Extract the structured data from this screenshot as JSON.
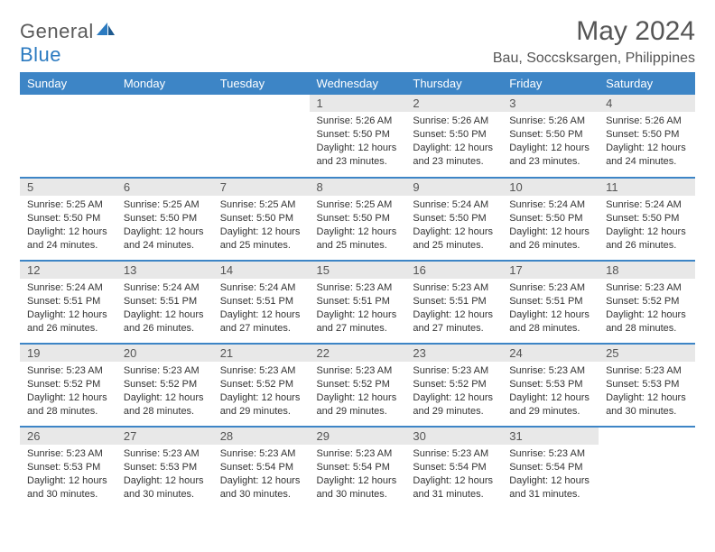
{
  "logo": {
    "word1": "General",
    "word2": "Blue"
  },
  "title": "May 2024",
  "location": "Bau, Soccsksargen, Philippines",
  "colors": {
    "header_bg": "#3d85c6",
    "header_fg": "#ffffff",
    "daynum_bg": "#e8e8e8",
    "row_border": "#3d85c6",
    "text": "#333333",
    "logo_gray": "#5a5a5a",
    "logo_blue": "#2b7ac0"
  },
  "typography": {
    "title_fontsize": 30,
    "location_fontsize": 16,
    "dayhead_fontsize": 13,
    "cell_fontsize": 11
  },
  "day_headers": [
    "Sunday",
    "Monday",
    "Tuesday",
    "Wednesday",
    "Thursday",
    "Friday",
    "Saturday"
  ],
  "weeks": [
    [
      null,
      null,
      null,
      {
        "n": "1",
        "sr": "5:26 AM",
        "ss": "5:50 PM",
        "dl": "12 hours and 23 minutes."
      },
      {
        "n": "2",
        "sr": "5:26 AM",
        "ss": "5:50 PM",
        "dl": "12 hours and 23 minutes."
      },
      {
        "n": "3",
        "sr": "5:26 AM",
        "ss": "5:50 PM",
        "dl": "12 hours and 23 minutes."
      },
      {
        "n": "4",
        "sr": "5:26 AM",
        "ss": "5:50 PM",
        "dl": "12 hours and 24 minutes."
      }
    ],
    [
      {
        "n": "5",
        "sr": "5:25 AM",
        "ss": "5:50 PM",
        "dl": "12 hours and 24 minutes."
      },
      {
        "n": "6",
        "sr": "5:25 AM",
        "ss": "5:50 PM",
        "dl": "12 hours and 24 minutes."
      },
      {
        "n": "7",
        "sr": "5:25 AM",
        "ss": "5:50 PM",
        "dl": "12 hours and 25 minutes."
      },
      {
        "n": "8",
        "sr": "5:25 AM",
        "ss": "5:50 PM",
        "dl": "12 hours and 25 minutes."
      },
      {
        "n": "9",
        "sr": "5:24 AM",
        "ss": "5:50 PM",
        "dl": "12 hours and 25 minutes."
      },
      {
        "n": "10",
        "sr": "5:24 AM",
        "ss": "5:50 PM",
        "dl": "12 hours and 26 minutes."
      },
      {
        "n": "11",
        "sr": "5:24 AM",
        "ss": "5:50 PM",
        "dl": "12 hours and 26 minutes."
      }
    ],
    [
      {
        "n": "12",
        "sr": "5:24 AM",
        "ss": "5:51 PM",
        "dl": "12 hours and 26 minutes."
      },
      {
        "n": "13",
        "sr": "5:24 AM",
        "ss": "5:51 PM",
        "dl": "12 hours and 26 minutes."
      },
      {
        "n": "14",
        "sr": "5:24 AM",
        "ss": "5:51 PM",
        "dl": "12 hours and 27 minutes."
      },
      {
        "n": "15",
        "sr": "5:23 AM",
        "ss": "5:51 PM",
        "dl": "12 hours and 27 minutes."
      },
      {
        "n": "16",
        "sr": "5:23 AM",
        "ss": "5:51 PM",
        "dl": "12 hours and 27 minutes."
      },
      {
        "n": "17",
        "sr": "5:23 AM",
        "ss": "5:51 PM",
        "dl": "12 hours and 28 minutes."
      },
      {
        "n": "18",
        "sr": "5:23 AM",
        "ss": "5:52 PM",
        "dl": "12 hours and 28 minutes."
      }
    ],
    [
      {
        "n": "19",
        "sr": "5:23 AM",
        "ss": "5:52 PM",
        "dl": "12 hours and 28 minutes."
      },
      {
        "n": "20",
        "sr": "5:23 AM",
        "ss": "5:52 PM",
        "dl": "12 hours and 28 minutes."
      },
      {
        "n": "21",
        "sr": "5:23 AM",
        "ss": "5:52 PM",
        "dl": "12 hours and 29 minutes."
      },
      {
        "n": "22",
        "sr": "5:23 AM",
        "ss": "5:52 PM",
        "dl": "12 hours and 29 minutes."
      },
      {
        "n": "23",
        "sr": "5:23 AM",
        "ss": "5:52 PM",
        "dl": "12 hours and 29 minutes."
      },
      {
        "n": "24",
        "sr": "5:23 AM",
        "ss": "5:53 PM",
        "dl": "12 hours and 29 minutes."
      },
      {
        "n": "25",
        "sr": "5:23 AM",
        "ss": "5:53 PM",
        "dl": "12 hours and 30 minutes."
      }
    ],
    [
      {
        "n": "26",
        "sr": "5:23 AM",
        "ss": "5:53 PM",
        "dl": "12 hours and 30 minutes."
      },
      {
        "n": "27",
        "sr": "5:23 AM",
        "ss": "5:53 PM",
        "dl": "12 hours and 30 minutes."
      },
      {
        "n": "28",
        "sr": "5:23 AM",
        "ss": "5:54 PM",
        "dl": "12 hours and 30 minutes."
      },
      {
        "n": "29",
        "sr": "5:23 AM",
        "ss": "5:54 PM",
        "dl": "12 hours and 30 minutes."
      },
      {
        "n": "30",
        "sr": "5:23 AM",
        "ss": "5:54 PM",
        "dl": "12 hours and 31 minutes."
      },
      {
        "n": "31",
        "sr": "5:23 AM",
        "ss": "5:54 PM",
        "dl": "12 hours and 31 minutes."
      },
      null
    ]
  ],
  "labels": {
    "sunrise": "Sunrise: ",
    "sunset": "Sunset: ",
    "daylight": "Daylight: "
  }
}
